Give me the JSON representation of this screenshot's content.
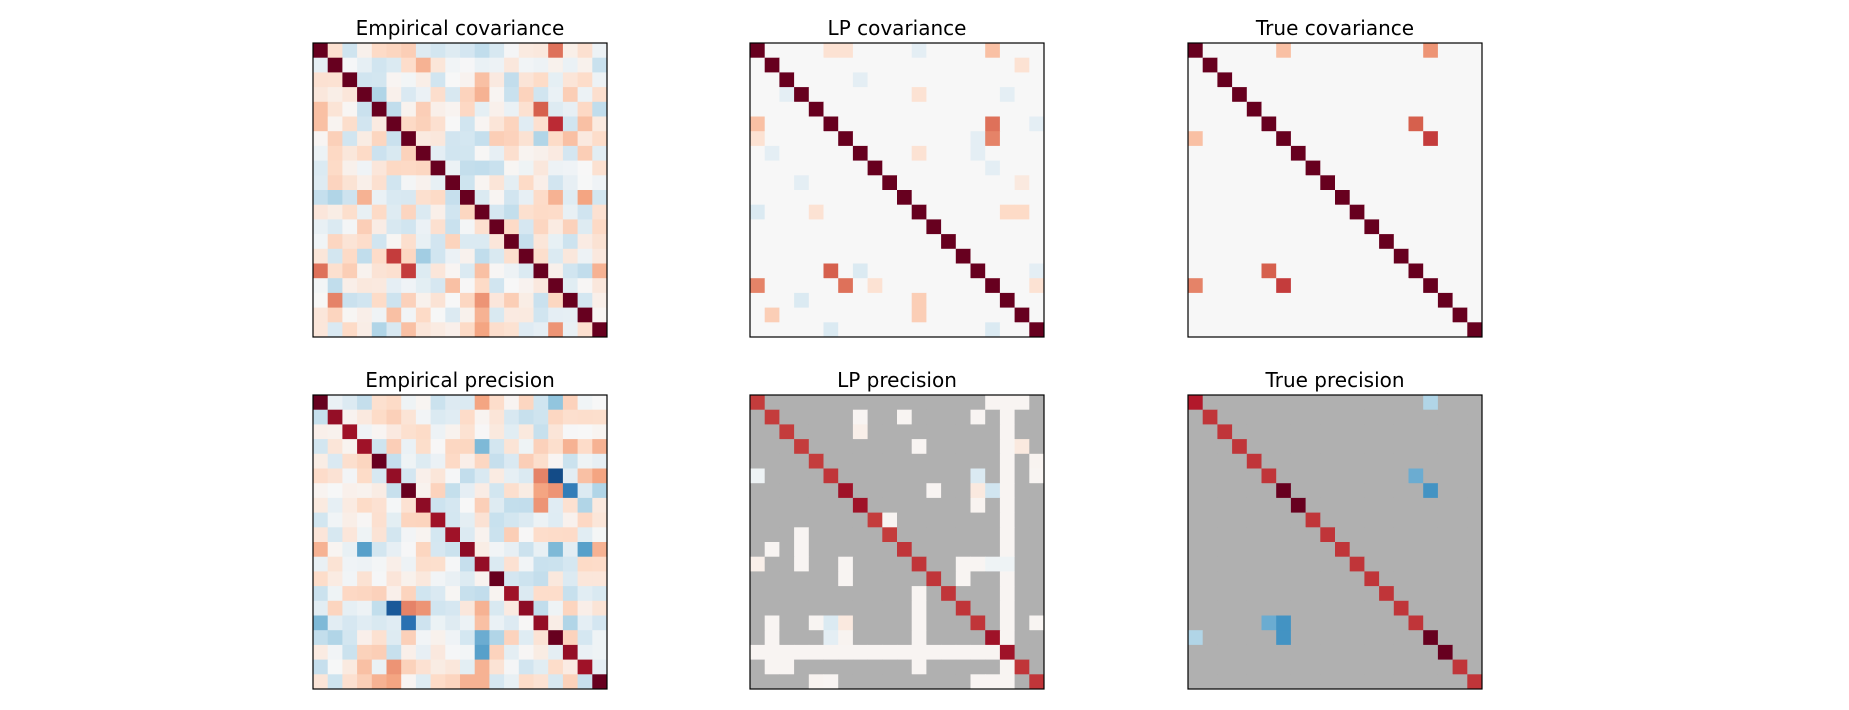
{
  "chart_data": [
    {
      "type": "heatmap",
      "title": "Empirical covariance",
      "size": 20,
      "colormap": "RdBu_r",
      "mode": "dense",
      "off_diagonal_scale": 0.25,
      "diagonal": 1.0,
      "cells": [
        [
          0,
          16,
          0.55
        ],
        [
          0,
          11,
          -0.25
        ],
        [
          0,
          6,
          0.25
        ],
        [
          0,
          4,
          0.2
        ],
        [
          0,
          5,
          0.22
        ],
        [
          1,
          7,
          0.35
        ],
        [
          1,
          4,
          -0.2
        ],
        [
          2,
          3,
          -0.2
        ],
        [
          2,
          11,
          0.3
        ],
        [
          2,
          8,
          -0.2
        ],
        [
          3,
          4,
          -0.3
        ],
        [
          3,
          11,
          0.35
        ],
        [
          3,
          15,
          -0.2
        ],
        [
          3,
          17,
          0.25
        ],
        [
          4,
          0,
          0.3
        ],
        [
          4,
          5,
          -0.25
        ],
        [
          4,
          15,
          0.6
        ],
        [
          4,
          19,
          -0.25
        ],
        [
          5,
          0,
          0.3
        ],
        [
          5,
          10,
          -0.2
        ],
        [
          5,
          16,
          0.75
        ],
        [
          5,
          18,
          0.3
        ],
        [
          6,
          2,
          -0.2
        ],
        [
          6,
          12,
          0.25
        ],
        [
          6,
          15,
          -0.3
        ],
        [
          6,
          17,
          0.3
        ],
        [
          7,
          9,
          -0.2
        ],
        [
          7,
          3,
          0.2
        ],
        [
          7,
          18,
          0.25
        ],
        [
          8,
          1,
          0.2
        ],
        [
          8,
          11,
          -0.25
        ],
        [
          9,
          5,
          -0.2
        ],
        [
          9,
          14,
          0.2
        ],
        [
          10,
          1,
          -0.3
        ],
        [
          10,
          3,
          0.35
        ],
        [
          10,
          16,
          0.35
        ],
        [
          10,
          18,
          0.4
        ],
        [
          10,
          8,
          0.2
        ],
        [
          11,
          9,
          -0.2
        ],
        [
          11,
          15,
          0.2
        ],
        [
          12,
          6,
          -0.2
        ],
        [
          12,
          13,
          0.2
        ],
        [
          13,
          4,
          -0.2
        ],
        [
          13,
          10,
          -0.15
        ],
        [
          14,
          2,
          0.2
        ],
        [
          14,
          5,
          0.7
        ],
        [
          14,
          7,
          -0.35
        ],
        [
          14,
          11,
          -0.25
        ],
        [
          14,
          8,
          -0.2
        ],
        [
          15,
          0,
          0.55
        ],
        [
          15,
          6,
          0.7
        ],
        [
          15,
          2,
          0.25
        ],
        [
          15,
          11,
          0.3
        ],
        [
          15,
          17,
          -0.2
        ],
        [
          15,
          19,
          0.35
        ],
        [
          16,
          1,
          -0.25
        ],
        [
          16,
          9,
          0.3
        ],
        [
          16,
          12,
          -0.2
        ],
        [
          17,
          1,
          0.5
        ],
        [
          17,
          3,
          -0.2
        ],
        [
          17,
          11,
          0.45
        ],
        [
          17,
          13,
          0.25
        ],
        [
          18,
          5,
          0.3
        ],
        [
          18,
          11,
          0.35
        ],
        [
          18,
          15,
          -0.2
        ],
        [
          18,
          7,
          0.2
        ],
        [
          19,
          4,
          -0.3
        ],
        [
          19,
          6,
          0.3
        ],
        [
          19,
          11,
          0.4
        ],
        [
          19,
          16,
          0.45
        ],
        [
          19,
          2,
          0.2
        ]
      ]
    },
    {
      "type": "heatmap",
      "title": "LP covariance",
      "size": 20,
      "colormap": "RdBu_r",
      "mode": "sparse",
      "diagonal": 1.0,
      "cells": [
        [
          0,
          5,
          0.15
        ],
        [
          0,
          6,
          0.15
        ],
        [
          0,
          11,
          -0.1
        ],
        [
          0,
          16,
          0.3
        ],
        [
          1,
          18,
          0.15
        ],
        [
          2,
          7,
          -0.1
        ],
        [
          3,
          2,
          -0.1
        ],
        [
          3,
          11,
          0.15
        ],
        [
          3,
          17,
          -0.1
        ],
        [
          5,
          0,
          0.3
        ],
        [
          5,
          16,
          0.55
        ],
        [
          5,
          19,
          -0.1
        ],
        [
          6,
          0,
          0.15
        ],
        [
          6,
          16,
          0.5
        ],
        [
          6,
          15,
          -0.1
        ],
        [
          7,
          1,
          -0.1
        ],
        [
          7,
          11,
          0.15
        ],
        [
          7,
          15,
          -0.1
        ],
        [
          8,
          16,
          -0.1
        ],
        [
          9,
          3,
          -0.1
        ],
        [
          9,
          18,
          0.1
        ],
        [
          11,
          0,
          -0.15
        ],
        [
          11,
          4,
          0.15
        ],
        [
          11,
          17,
          0.2
        ],
        [
          11,
          18,
          0.2
        ],
        [
          15,
          5,
          0.6
        ],
        [
          15,
          7,
          -0.15
        ],
        [
          15,
          19,
          -0.1
        ],
        [
          16,
          0,
          0.5
        ],
        [
          16,
          6,
          0.55
        ],
        [
          16,
          8,
          0.15
        ],
        [
          16,
          19,
          0.15
        ],
        [
          17,
          3,
          -0.15
        ],
        [
          17,
          11,
          0.25
        ],
        [
          18,
          1,
          0.25
        ],
        [
          18,
          11,
          0.25
        ],
        [
          19,
          5,
          -0.15
        ],
        [
          19,
          16,
          -0.15
        ]
      ]
    },
    {
      "type": "heatmap",
      "title": "True covariance",
      "size": 20,
      "colormap": "RdBu_r",
      "mode": "sparse",
      "diagonal": 1.0,
      "cells": [
        [
          0,
          6,
          0.3
        ],
        [
          0,
          16,
          0.45
        ],
        [
          5,
          15,
          0.6
        ],
        [
          6,
          0,
          0.3
        ],
        [
          6,
          16,
          0.7
        ],
        [
          15,
          5,
          0.6
        ],
        [
          16,
          0,
          0.5
        ],
        [
          16,
          6,
          0.7
        ]
      ]
    },
    {
      "type": "heatmap",
      "title": "Empirical precision",
      "size": 20,
      "colormap": "RdBu_r",
      "mode": "dense",
      "off_diagonal_scale": 0.25,
      "diagonal": 1.0,
      "diag_values": [
        1.0,
        0.88,
        0.85,
        0.85,
        1.0,
        0.88,
        1.0,
        0.9,
        0.85,
        0.85,
        0.9,
        0.88,
        1.0,
        0.85,
        0.9,
        0.88,
        1.0,
        0.88,
        0.85,
        1.0
      ],
      "cells": [
        [
          0,
          11,
          0.4
        ],
        [
          0,
          16,
          -0.4
        ],
        [
          0,
          5,
          0.2
        ],
        [
          3,
          11,
          -0.45
        ],
        [
          3,
          17,
          0.35
        ],
        [
          3,
          19,
          0.35
        ],
        [
          5,
          16,
          -0.9
        ],
        [
          5,
          15,
          0.5
        ],
        [
          5,
          18,
          0.3
        ],
        [
          5,
          19,
          0.4
        ],
        [
          6,
          16,
          0.45
        ],
        [
          6,
          17,
          -0.7
        ],
        [
          6,
          15,
          0.4
        ],
        [
          6,
          19,
          -0.3
        ],
        [
          7,
          15,
          0.45
        ],
        [
          7,
          18,
          -0.3
        ],
        [
          10,
          0,
          0.35
        ],
        [
          10,
          3,
          -0.55
        ],
        [
          10,
          16,
          -0.45
        ],
        [
          10,
          18,
          -0.55
        ],
        [
          10,
          19,
          0.35
        ],
        [
          14,
          5,
          -0.85
        ],
        [
          14,
          6,
          0.5
        ],
        [
          14,
          7,
          0.45
        ],
        [
          14,
          11,
          0.35
        ],
        [
          14,
          15,
          -0.25
        ],
        [
          15,
          0,
          -0.45
        ],
        [
          15,
          6,
          -0.75
        ],
        [
          15,
          11,
          0.3
        ],
        [
          15,
          17,
          -0.3
        ],
        [
          16,
          1,
          -0.3
        ],
        [
          16,
          11,
          -0.5
        ],
        [
          16,
          12,
          -0.3
        ],
        [
          17,
          11,
          -0.55
        ],
        [
          17,
          4,
          0.25
        ],
        [
          18,
          5,
          0.45
        ],
        [
          18,
          11,
          0.35
        ],
        [
          18,
          3,
          0.3
        ],
        [
          19,
          4,
          0.35
        ],
        [
          19,
          5,
          0.4
        ],
        [
          19,
          10,
          0.35
        ],
        [
          19,
          11,
          0.35
        ]
      ]
    },
    {
      "type": "heatmap",
      "title": "LP precision",
      "size": 20,
      "colormap": "RdBu_r",
      "mode": "masked",
      "diagonal": 0.75,
      "diag_values": [
        0.7,
        0.7,
        0.7,
        0.7,
        0.7,
        0.72,
        0.85,
        0.85,
        0.7,
        0.7,
        0.72,
        0.72,
        0.72,
        0.72,
        0.72,
        0.72,
        0.85,
        0.85,
        0.72,
        0.72
      ],
      "cells": [
        [
          0,
          16,
          0.02
        ],
        [
          0,
          17,
          0.02
        ],
        [
          0,
          18,
          0.02
        ],
        [
          1,
          7,
          0.02
        ],
        [
          1,
          10,
          0.02
        ],
        [
          1,
          15,
          0.02
        ],
        [
          1,
          17,
          0.02
        ],
        [
          2,
          7,
          0.06
        ],
        [
          2,
          17,
          0.02
        ],
        [
          3,
          11,
          0.02
        ],
        [
          3,
          17,
          0.02
        ],
        [
          3,
          18,
          0.1
        ],
        [
          4,
          17,
          0.02
        ],
        [
          4,
          19,
          0.03
        ],
        [
          5,
          0,
          -0.05
        ],
        [
          5,
          15,
          -0.15
        ],
        [
          5,
          17,
          0.02
        ],
        [
          5,
          19,
          0.02
        ],
        [
          6,
          12,
          0.02
        ],
        [
          6,
          15,
          0.1
        ],
        [
          6,
          16,
          -0.2
        ],
        [
          6,
          17,
          0.02
        ],
        [
          7,
          15,
          0.03
        ],
        [
          7,
          17,
          0.02
        ],
        [
          8,
          9,
          0.02
        ],
        [
          8,
          17,
          0.02
        ],
        [
          9,
          3,
          0.02
        ],
        [
          9,
          17,
          0.02
        ],
        [
          10,
          1,
          0.02
        ],
        [
          10,
          3,
          0.02
        ],
        [
          10,
          17,
          0.02
        ],
        [
          11,
          0,
          0.06
        ],
        [
          11,
          3,
          0.02
        ],
        [
          11,
          6,
          0.02
        ],
        [
          11,
          14,
          0.02
        ],
        [
          11,
          15,
          0.02
        ],
        [
          11,
          16,
          -0.05
        ],
        [
          11,
          17,
          -0.05
        ],
        [
          12,
          6,
          0.02
        ],
        [
          12,
          14,
          0.02
        ],
        [
          12,
          17,
          0.02
        ],
        [
          13,
          11,
          0.02
        ],
        [
          13,
          17,
          0.02
        ],
        [
          14,
          11,
          0.02
        ],
        [
          14,
          17,
          0.02
        ],
        [
          15,
          1,
          0.02
        ],
        [
          15,
          4,
          0.02
        ],
        [
          15,
          5,
          -0.15
        ],
        [
          15,
          6,
          0.1
        ],
        [
          15,
          11,
          0.02
        ],
        [
          15,
          17,
          0.02
        ],
        [
          15,
          19,
          0.02
        ],
        [
          16,
          1,
          0.02
        ],
        [
          16,
          5,
          -0.1
        ],
        [
          16,
          6,
          0.03
        ],
        [
          16,
          11,
          0.02
        ],
        [
          16,
          17,
          0.02
        ],
        [
          17,
          0,
          0.02
        ],
        [
          17,
          1,
          0.02
        ],
        [
          17,
          2,
          0.02
        ],
        [
          17,
          3,
          0.02
        ],
        [
          17,
          4,
          0.02
        ],
        [
          17,
          5,
          0.02
        ],
        [
          17,
          6,
          0.02
        ],
        [
          17,
          7,
          0.02
        ],
        [
          17,
          8,
          0.02
        ],
        [
          17,
          9,
          0.02
        ],
        [
          17,
          10,
          0.02
        ],
        [
          17,
          11,
          0.02
        ],
        [
          17,
          12,
          0.02
        ],
        [
          17,
          13,
          0.02
        ],
        [
          17,
          14,
          0.02
        ],
        [
          17,
          15,
          0.02
        ],
        [
          17,
          16,
          0.02
        ],
        [
          18,
          1,
          0.02
        ],
        [
          18,
          2,
          0.02
        ],
        [
          18,
          11,
          0.02
        ],
        [
          18,
          17,
          0.02
        ],
        [
          19,
          4,
          0.03
        ],
        [
          19,
          5,
          0.02
        ],
        [
          19,
          15,
          0.02
        ],
        [
          19,
          16,
          0.02
        ],
        [
          19,
          17,
          0.02
        ]
      ]
    },
    {
      "type": "heatmap",
      "title": "True precision",
      "size": 20,
      "colormap": "RdBu_r",
      "mode": "masked",
      "diagonal": 0.75,
      "diag_values": [
        0.8,
        0.72,
        0.72,
        0.72,
        0.72,
        0.72,
        1.0,
        1.0,
        0.72,
        0.72,
        0.72,
        0.72,
        0.72,
        0.72,
        0.72,
        0.72,
        1.0,
        1.0,
        0.72,
        0.72
      ],
      "cells": [
        [
          0,
          16,
          -0.3
        ],
        [
          5,
          15,
          -0.5
        ],
        [
          6,
          16,
          -0.6
        ],
        [
          15,
          5,
          -0.5
        ],
        [
          15,
          6,
          -0.6
        ],
        [
          16,
          0,
          -0.3
        ],
        [
          16,
          6,
          -0.6
        ]
      ]
    }
  ]
}
